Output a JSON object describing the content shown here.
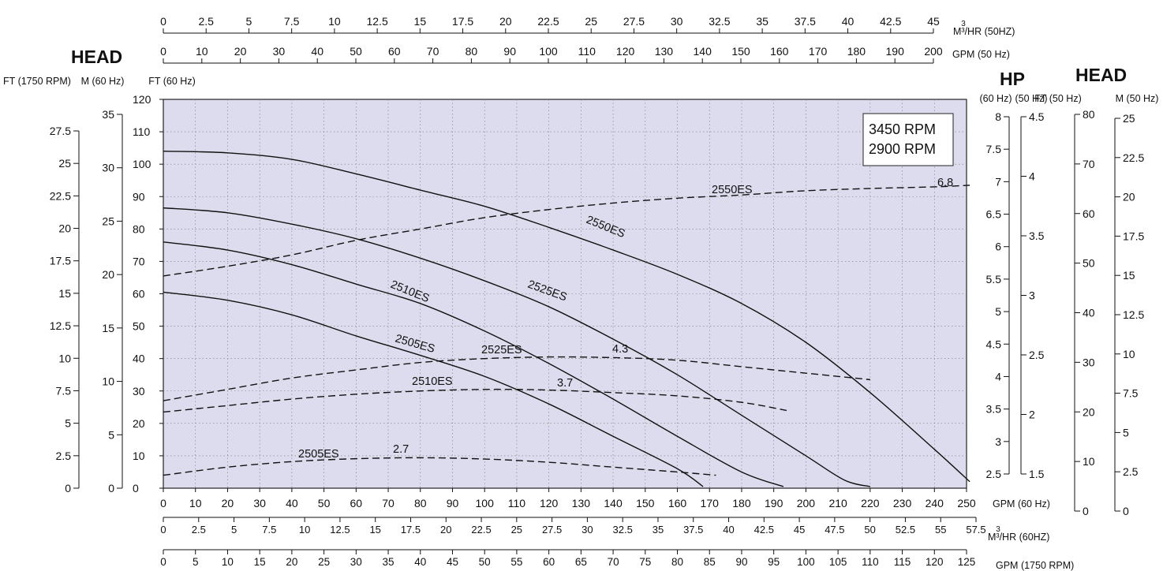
{
  "chart_data": {
    "type": "line",
    "headings": {
      "head_left": "HEAD",
      "hp": "HP",
      "head_right": "HEAD"
    },
    "legend": {
      "line1": "3450 RPM",
      "line2": "2900 RPM",
      "placement": "top-right"
    },
    "grid": true,
    "x_axes": {
      "gpm60": {
        "unit": "GPM (60 Hz)",
        "range": [
          0,
          250
        ],
        "ticks": [
          "0",
          "10",
          "20",
          "30",
          "40",
          "50",
          "60",
          "70",
          "80",
          "90",
          "100",
          "110",
          "120",
          "130",
          "140",
          "150",
          "160",
          "170",
          "180",
          "190",
          "200",
          "210",
          "220",
          "230",
          "240",
          "250"
        ]
      },
      "m3hr60": {
        "unit": "M³/HR (60HZ)",
        "ticks": [
          "0",
          "2.5",
          "5",
          "7.5",
          "10",
          "12.5",
          "15",
          "17.5",
          "20",
          "22.5",
          "25",
          "27.5",
          "30",
          "32.5",
          "35",
          "37.5",
          "40",
          "42.5",
          "45",
          "47.5",
          "50",
          "52.5",
          "55",
          "57.5"
        ]
      },
      "gpm1750": {
        "unit": "GPM (1750 RPM)",
        "ticks": [
          "0",
          "5",
          "10",
          "15",
          "20",
          "25",
          "30",
          "35",
          "40",
          "45",
          "50",
          "55",
          "60",
          "65",
          "70",
          "75",
          "80",
          "85",
          "90",
          "95",
          "100",
          "105",
          "110",
          "115",
          "120",
          "125"
        ]
      },
      "m3hr50": {
        "unit": "M³/HR (50HZ)",
        "ticks": [
          "0",
          "2.5",
          "5",
          "7.5",
          "10",
          "12.5",
          "15",
          "17.5",
          "20",
          "22.5",
          "25",
          "27.5",
          "30",
          "32.5",
          "35",
          "37.5",
          "40",
          "42.5",
          "45"
        ]
      },
      "gpm50": {
        "unit": "GPM (50 Hz)",
        "ticks": [
          "0",
          "10",
          "20",
          "30",
          "40",
          "50",
          "60",
          "70",
          "80",
          "90",
          "100",
          "110",
          "120",
          "130",
          "140",
          "150",
          "160",
          "170",
          "180",
          "190",
          "200"
        ]
      }
    },
    "y_axes": {
      "ft60": {
        "unit": "FT (60 Hz)",
        "range": [
          0,
          120
        ],
        "ticks": [
          "0",
          "10",
          "20",
          "30",
          "40",
          "50",
          "60",
          "70",
          "80",
          "90",
          "100",
          "110",
          "120"
        ]
      },
      "m60": {
        "unit": "M (60 Hz)",
        "ticks": [
          "0",
          "5",
          "10",
          "15",
          "20",
          "25",
          "30",
          "35"
        ]
      },
      "ft1750": {
        "unit": "FT (1750 RPM)",
        "ticks": [
          "0",
          "2.5",
          "5",
          "7.5",
          "10",
          "12.5",
          "15",
          "17.5",
          "20",
          "22.5",
          "25",
          "27.5"
        ]
      },
      "hp60": {
        "unit": "(60 Hz)",
        "ticks": [
          "2.5",
          "3",
          "3.5",
          "4",
          "4.5",
          "5",
          "5.5",
          "6",
          "6.5",
          "7",
          "7.5",
          "8"
        ]
      },
      "hp50": {
        "unit": "(50 Hz)",
        "ticks": [
          "1.5",
          "2",
          "2.5",
          "3",
          "3.5",
          "4",
          "4.5"
        ]
      },
      "ft50": {
        "unit": "FT (50 Hz)",
        "ticks": [
          "0",
          "10",
          "20",
          "30",
          "40",
          "50",
          "60",
          "70",
          "80"
        ]
      },
      "m50": {
        "unit": "M (50 Hz)",
        "ticks": [
          "0",
          "2.5",
          "5",
          "7.5",
          "10",
          "12.5",
          "15",
          "17.5",
          "20",
          "22.5",
          "25"
        ]
      }
    },
    "series": [
      {
        "name": "2505ES",
        "kind": "head",
        "points": [
          [
            0,
            60.5
          ],
          [
            20,
            58
          ],
          [
            40,
            53.5
          ],
          [
            60,
            47
          ],
          [
            80,
            41
          ],
          [
            100,
            34.5
          ],
          [
            120,
            26
          ],
          [
            140,
            16
          ],
          [
            160,
            6
          ],
          [
            168,
            0.5
          ]
        ]
      },
      {
        "name": "2510ES",
        "kind": "head",
        "points": [
          [
            0,
            76
          ],
          [
            20,
            73.5
          ],
          [
            40,
            69
          ],
          [
            60,
            63
          ],
          [
            80,
            57
          ],
          [
            100,
            48.5
          ],
          [
            120,
            38.5
          ],
          [
            140,
            27.5
          ],
          [
            160,
            16
          ],
          [
            180,
            5
          ],
          [
            193,
            0.5
          ]
        ]
      },
      {
        "name": "2525ES",
        "kind": "head",
        "points": [
          [
            0,
            86.5
          ],
          [
            20,
            85
          ],
          [
            40,
            81.5
          ],
          [
            60,
            77
          ],
          [
            80,
            71
          ],
          [
            100,
            64
          ],
          [
            120,
            56
          ],
          [
            140,
            46
          ],
          [
            160,
            35
          ],
          [
            180,
            22.5
          ],
          [
            200,
            10
          ],
          [
            212,
            2.5
          ],
          [
            220,
            0.5
          ]
        ]
      },
      {
        "name": "2550ES",
        "kind": "head",
        "points": [
          [
            0,
            104
          ],
          [
            20,
            103.5
          ],
          [
            40,
            101.5
          ],
          [
            60,
            97
          ],
          [
            80,
            92
          ],
          [
            100,
            87
          ],
          [
            120,
            80.5
          ],
          [
            140,
            73.5
          ],
          [
            160,
            66
          ],
          [
            180,
            57
          ],
          [
            200,
            45
          ],
          [
            220,
            29.5
          ],
          [
            240,
            12
          ],
          [
            251,
            2
          ]
        ]
      },
      {
        "name": "2505ES",
        "kind": "hp",
        "points": [
          [
            0,
            4
          ],
          [
            20,
            6.5
          ],
          [
            40,
            8.2
          ],
          [
            60,
            9.1
          ],
          [
            80,
            9.4
          ],
          [
            100,
            9
          ],
          [
            120,
            8
          ],
          [
            140,
            6.5
          ],
          [
            160,
            5
          ],
          [
            172,
            4
          ]
        ],
        "peak_label": "2.7"
      },
      {
        "name": "2510ES",
        "kind": "hp",
        "points": [
          [
            0,
            23.5
          ],
          [
            20,
            25.5
          ],
          [
            40,
            27.5
          ],
          [
            60,
            29
          ],
          [
            80,
            30
          ],
          [
            100,
            30.5
          ],
          [
            120,
            30.3
          ],
          [
            140,
            29.5
          ],
          [
            160,
            28.5
          ],
          [
            180,
            26.5
          ],
          [
            194,
            24
          ]
        ],
        "peak_label": "3.7"
      },
      {
        "name": "2525ES",
        "kind": "hp",
        "points": [
          [
            0,
            27
          ],
          [
            20,
            30.5
          ],
          [
            40,
            34
          ],
          [
            60,
            36.5
          ],
          [
            80,
            38.8
          ],
          [
            100,
            40
          ],
          [
            120,
            40.5
          ],
          [
            140,
            40.3
          ],
          [
            160,
            39.5
          ],
          [
            180,
            37.5
          ],
          [
            200,
            35.5
          ],
          [
            220,
            33.5
          ]
        ],
        "peak_label": "4.3"
      },
      {
        "name": "2550ES",
        "kind": "hp",
        "points": [
          [
            0,
            65.5
          ],
          [
            20,
            68.5
          ],
          [
            40,
            72
          ],
          [
            60,
            76.5
          ],
          [
            80,
            80
          ],
          [
            100,
            83.5
          ],
          [
            120,
            86
          ],
          [
            140,
            88
          ],
          [
            160,
            89.5
          ],
          [
            180,
            90.5
          ],
          [
            200,
            91.8
          ],
          [
            220,
            92.5
          ],
          [
            240,
            93
          ],
          [
            251,
            93.5
          ]
        ],
        "peak_label": "6.8"
      }
    ]
  }
}
